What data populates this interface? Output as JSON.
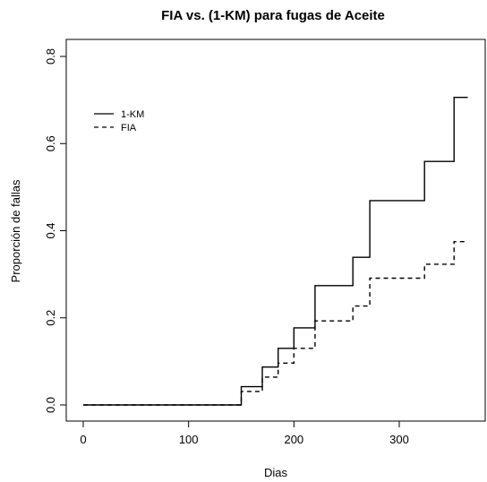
{
  "chart_data": {
    "type": "line",
    "title": "FIA vs. (1-KM) para fugas de Aceite",
    "xlabel": "Dias",
    "ylabel": "Proporción de fallas",
    "xlim": [
      0,
      380
    ],
    "ylim": [
      0,
      0.82
    ],
    "xticks": [
      0,
      100,
      200,
      300
    ],
    "yticks": [
      0.0,
      0.2,
      0.4,
      0.6,
      0.8
    ],
    "xtick_labels": [
      "0",
      "100",
      "200",
      "300"
    ],
    "ytick_labels": [
      "0.0",
      "0.2",
      "0.4",
      "0.6",
      "0.8"
    ],
    "grid": false,
    "legend_position": "top-left",
    "series": [
      {
        "name": "1-KM",
        "line_style": "solid",
        "step": true,
        "x": [
          0,
          150,
          170,
          185,
          200,
          220,
          256,
          272,
          324,
          352,
          365
        ],
        "y": [
          0.0,
          0.042,
          0.087,
          0.13,
          0.177,
          0.274,
          0.339,
          0.469,
          0.559,
          0.706,
          0.706
        ]
      },
      {
        "name": "FIA",
        "line_style": "dashed",
        "step": true,
        "x": [
          0,
          150,
          170,
          185,
          200,
          220,
          256,
          272,
          324,
          352,
          365
        ],
        "y": [
          0.0,
          0.031,
          0.064,
          0.096,
          0.13,
          0.193,
          0.227,
          0.291,
          0.323,
          0.375,
          0.375
        ]
      }
    ]
  }
}
